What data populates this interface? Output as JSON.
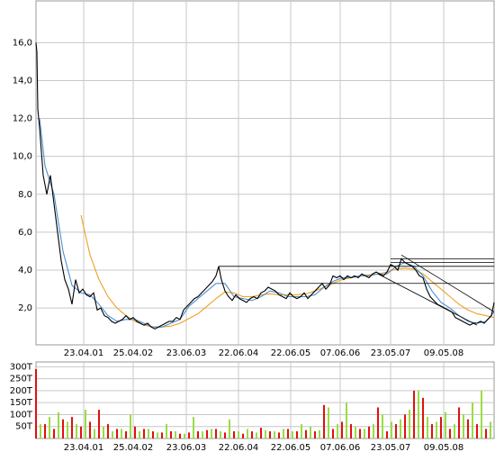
{
  "chart_data": [
    {
      "type": "line",
      "xlim": [
        0,
        509
      ],
      "ylim": [
        0.06,
        18.2
      ],
      "grid": true,
      "xticks": [
        {
          "value": 53,
          "label": "23.04.01"
        },
        {
          "value": 108,
          "label": "25.04.02"
        },
        {
          "value": 167,
          "label": "23.06.03"
        },
        {
          "value": 225,
          "label": "22.06.04"
        },
        {
          "value": 283,
          "label": "22.06.05"
        },
        {
          "value": 338,
          "label": "07.06.06"
        },
        {
          "value": 394,
          "label": "23.05.07"
        },
        {
          "value": 453,
          "label": "09.05.08"
        }
      ],
      "yticks": [
        {
          "value": 2,
          "label": "2,0"
        },
        {
          "value": 4,
          "label": "4,0"
        },
        {
          "value": 6,
          "label": "6,0"
        },
        {
          "value": 8,
          "label": "8,0"
        },
        {
          "value": 10,
          "label": "10,0"
        },
        {
          "value": 12,
          "label": "12,0"
        },
        {
          "value": 14,
          "label": "14,0"
        },
        {
          "value": 16,
          "label": "16,0"
        }
      ],
      "series": [
        {
          "color": "#f0a020",
          "x": [
            50,
            60,
            70,
            80,
            90,
            100,
            110,
            120,
            130,
            140,
            150,
            160,
            170,
            180,
            190,
            200,
            210,
            220,
            230,
            240,
            250,
            260,
            270,
            280,
            290,
            300,
            310,
            320,
            330,
            340,
            350,
            360,
            370,
            380,
            390,
            400,
            410,
            420,
            430,
            440,
            450,
            460,
            470,
            480,
            490,
            500,
            509
          ],
          "values": [
            6.9,
            4.8,
            3.5,
            2.6,
            2.0,
            1.6,
            1.3,
            1.1,
            1.0,
            1.0,
            1.05,
            1.2,
            1.45,
            1.7,
            2.1,
            2.5,
            2.85,
            2.8,
            2.6,
            2.6,
            2.7,
            2.75,
            2.7,
            2.7,
            2.7,
            2.75,
            2.9,
            3.1,
            3.3,
            3.5,
            3.6,
            3.7,
            3.75,
            3.8,
            3.9,
            4.05,
            4.1,
            4.05,
            3.8,
            3.4,
            3.0,
            2.6,
            2.2,
            1.9,
            1.7,
            1.6,
            1.5
          ]
        },
        {
          "color": "#4a8fd0",
          "x": [
            4,
            10,
            20,
            30,
            40,
            50,
            60,
            70,
            80,
            90,
            100,
            110,
            120,
            130,
            140,
            150,
            160,
            170,
            180,
            190,
            200,
            210,
            220,
            230,
            240,
            250,
            260,
            270,
            280,
            290,
            300,
            310,
            320,
            330,
            340,
            350,
            360,
            370,
            380,
            390,
            400,
            410,
            420,
            430,
            440,
            450,
            460,
            470,
            480,
            490,
            500,
            509
          ],
          "values": [
            12,
            9.5,
            8.0,
            5.0,
            3.2,
            2.8,
            2.7,
            2.2,
            1.6,
            1.3,
            1.4,
            1.4,
            1.2,
            1.0,
            1.0,
            1.2,
            1.4,
            2.1,
            2.5,
            2.9,
            3.3,
            3.3,
            2.6,
            2.5,
            2.4,
            2.6,
            2.9,
            2.8,
            2.6,
            2.6,
            2.6,
            2.7,
            3.1,
            3.4,
            3.6,
            3.6,
            3.7,
            3.7,
            3.8,
            3.8,
            4.2,
            4.4,
            4.2,
            3.7,
            2.9,
            2.3,
            2.0,
            1.6,
            1.3,
            1.2,
            1.3,
            1.8
          ]
        },
        {
          "color": "#000000",
          "x": [
            0,
            1,
            2,
            4,
            8,
            12,
            16,
            20,
            24,
            28,
            32,
            36,
            40,
            44,
            48,
            52,
            56,
            60,
            64,
            68,
            72,
            76,
            80,
            84,
            88,
            92,
            96,
            100,
            104,
            108,
            112,
            116,
            120,
            124,
            128,
            132,
            136,
            140,
            144,
            148,
            152,
            156,
            160,
            164,
            168,
            172,
            176,
            180,
            184,
            188,
            192,
            196,
            200,
            203,
            206,
            210,
            214,
            218,
            222,
            226,
            230,
            234,
            238,
            242,
            246,
            250,
            254,
            258,
            262,
            266,
            270,
            274,
            278,
            282,
            286,
            290,
            294,
            298,
            302,
            306,
            310,
            314,
            318,
            322,
            326,
            330,
            334,
            338,
            342,
            346,
            350,
            354,
            358,
            362,
            366,
            370,
            374,
            378,
            382,
            386,
            390,
            394,
            398,
            402,
            406,
            410,
            414,
            418,
            422,
            426,
            430,
            434,
            438,
            442,
            446,
            450,
            454,
            458,
            462,
            466,
            470,
            474,
            478,
            482,
            486,
            490,
            494,
            498,
            502,
            506,
            509
          ],
          "values": [
            16.0,
            15.5,
            12.5,
            11.5,
            9.0,
            8.0,
            9.0,
            7.5,
            6.0,
            4.5,
            3.5,
            3.0,
            2.2,
            3.5,
            2.8,
            3.0,
            2.7,
            2.6,
            2.8,
            1.9,
            2.0,
            1.6,
            1.5,
            1.3,
            1.2,
            1.3,
            1.4,
            1.6,
            1.4,
            1.5,
            1.3,
            1.2,
            1.1,
            1.2,
            1.0,
            0.9,
            1.0,
            1.1,
            1.2,
            1.3,
            1.3,
            1.5,
            1.4,
            1.9,
            2.1,
            2.3,
            2.5,
            2.6,
            2.8,
            3.0,
            3.2,
            3.4,
            3.7,
            4.2,
            3.5,
            2.9,
            2.6,
            2.4,
            2.7,
            2.5,
            2.4,
            2.3,
            2.5,
            2.6,
            2.5,
            2.8,
            2.9,
            3.1,
            3.0,
            2.9,
            2.7,
            2.6,
            2.5,
            2.8,
            2.6,
            2.5,
            2.6,
            2.8,
            2.5,
            2.7,
            2.9,
            3.1,
            3.3,
            3.0,
            3.2,
            3.7,
            3.6,
            3.7,
            3.5,
            3.7,
            3.6,
            3.7,
            3.6,
            3.8,
            3.7,
            3.6,
            3.8,
            3.9,
            3.8,
            3.7,
            3.9,
            4.3,
            4.2,
            4.0,
            4.6,
            4.4,
            4.3,
            4.2,
            4.0,
            3.7,
            3.6,
            3.0,
            2.6,
            2.4,
            2.2,
            2.1,
            2.0,
            1.9,
            1.8,
            1.5,
            1.4,
            1.3,
            1.2,
            1.1,
            1.2,
            1.2,
            1.3,
            1.2,
            1.4,
            1.6,
            2.3
          ]
        }
      ],
      "trend_lines": [
        {
          "x": [
            203,
            509
          ],
          "values": [
            4.2,
            4.2
          ]
        },
        {
          "x": [
            260,
            509
          ],
          "values": [
            3.3,
            3.3
          ]
        },
        {
          "x": [
            394,
            509
          ],
          "values": [
            4.6,
            4.6
          ]
        },
        {
          "x": [
            394,
            509
          ],
          "values": [
            4.4,
            4.4
          ]
        },
        {
          "x": [
            406,
            509
          ],
          "values": [
            4.8,
            1.8
          ]
        },
        {
          "x": [
            380,
            490
          ],
          "values": [
            3.8,
            1.1
          ]
        }
      ]
    },
    {
      "type": "bar",
      "xlim": [
        0,
        509
      ],
      "ylim": [
        0,
        320
      ],
      "grid": true,
      "xticks": [
        {
          "value": 53,
          "label": "23.04.01"
        },
        {
          "value": 108,
          "label": "25.04.02"
        },
        {
          "value": 167,
          "label": "23.06.03"
        },
        {
          "value": 225,
          "label": "22.06.04"
        },
        {
          "value": 283,
          "label": "22.06.05"
        },
        {
          "value": 338,
          "label": "07.06.06"
        },
        {
          "value": 394,
          "label": "23.05.07"
        },
        {
          "value": 453,
          "label": "09.05.08"
        }
      ],
      "yticks": [
        {
          "value": 50,
          "label": "50T"
        },
        {
          "value": 100,
          "label": "100T"
        },
        {
          "value": 150,
          "label": "150T"
        },
        {
          "value": 200,
          "label": "200T"
        },
        {
          "value": 250,
          "label": "250T"
        },
        {
          "value": 300,
          "label": "300T"
        }
      ],
      "series": [
        {
          "color": "#99dd44",
          "x": [
            5,
            15,
            25,
            35,
            45,
            55,
            65,
            75,
            85,
            95,
            105,
            115,
            125,
            135,
            145,
            155,
            165,
            175,
            185,
            195,
            205,
            215,
            225,
            235,
            245,
            255,
            265,
            275,
            285,
            295,
            305,
            315,
            325,
            335,
            345,
            355,
            365,
            375,
            385,
            395,
            405,
            415,
            425,
            435,
            445,
            455,
            465,
            475,
            485,
            495,
            505
          ],
          "values": [
            60,
            90,
            110,
            70,
            60,
            120,
            40,
            50,
            30,
            40,
            100,
            30,
            40,
            25,
            60,
            30,
            20,
            90,
            30,
            40,
            30,
            80,
            30,
            40,
            25,
            35,
            30,
            40,
            30,
            60,
            50,
            35,
            130,
            60,
            150,
            50,
            40,
            60,
            100,
            70,
            80,
            120,
            200,
            90,
            70,
            110,
            60,
            100,
            150,
            200,
            70
          ]
        },
        {
          "color": "#e01010",
          "x": [
            0,
            10,
            20,
            30,
            40,
            50,
            60,
            70,
            80,
            90,
            100,
            110,
            120,
            130,
            140,
            150,
            160,
            170,
            180,
            190,
            200,
            210,
            220,
            230,
            240,
            250,
            260,
            270,
            280,
            290,
            300,
            310,
            320,
            330,
            340,
            350,
            360,
            370,
            380,
            390,
            400,
            410,
            420,
            430,
            440,
            450,
            460,
            470,
            480,
            490,
            500
          ],
          "values": [
            290,
            60,
            40,
            80,
            90,
            50,
            70,
            120,
            60,
            40,
            30,
            50,
            40,
            30,
            25,
            30,
            20,
            25,
            30,
            35,
            40,
            25,
            30,
            20,
            30,
            45,
            30,
            25,
            40,
            30,
            35,
            30,
            140,
            40,
            70,
            60,
            40,
            50,
            130,
            30,
            60,
            100,
            200,
            170,
            60,
            90,
            40,
            130,
            80,
            60,
            40
          ]
        }
      ]
    }
  ]
}
